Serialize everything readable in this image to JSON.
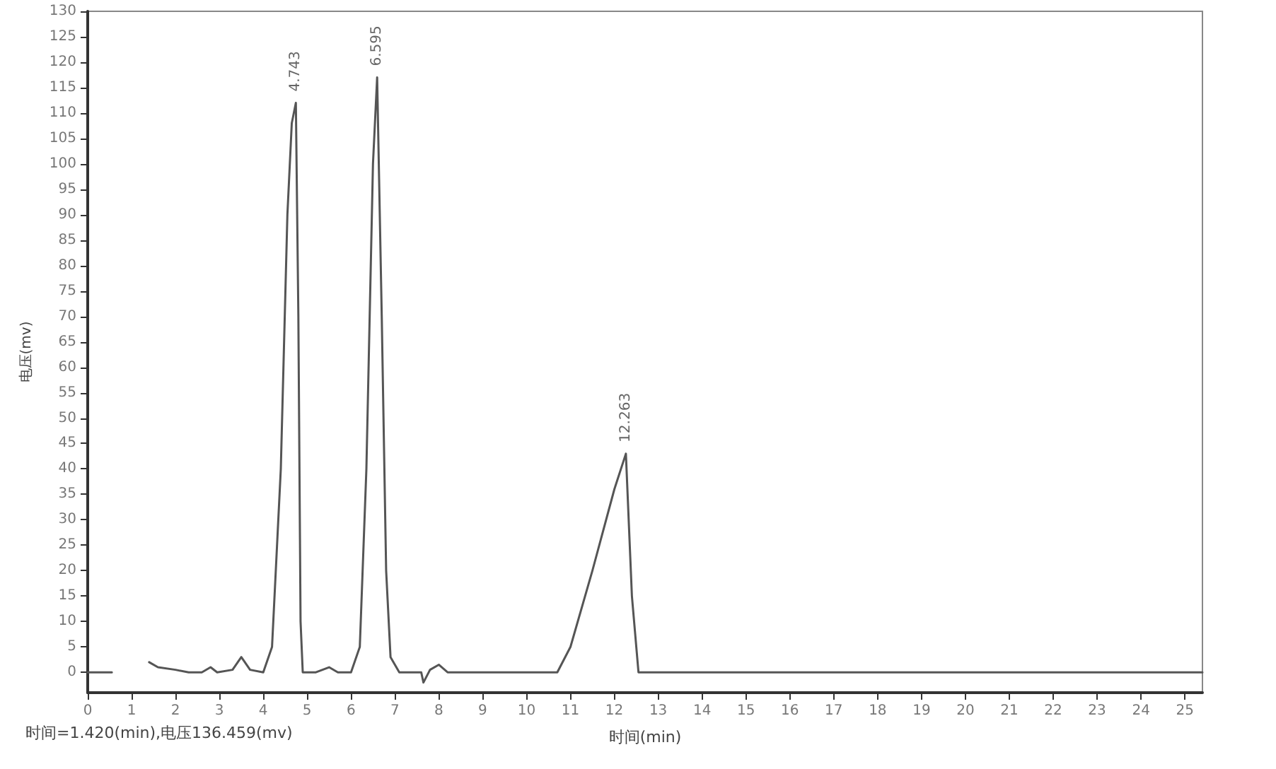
{
  "chart_data": {
    "type": "line",
    "xlabel": "时间(min)",
    "ylabel": "电压(mv)",
    "annotations": [
      {
        "text": "4.743",
        "x": 4.743,
        "y": 112
      },
      {
        "text": "6.595",
        "x": 6.595,
        "y": 117
      },
      {
        "text": "12.263",
        "x": 12.263,
        "y": 43
      },
      "时间=1.420(min),电压136.459(mv)"
    ],
    "x": [
      0,
      0.55,
      0.56,
      0.72,
      0.73,
      1.25,
      1.4,
      1.6,
      2.0,
      2.3,
      2.6,
      2.8,
      2.95,
      3.3,
      3.5,
      3.7,
      4.0,
      4.2,
      4.4,
      4.55,
      4.65,
      4.743,
      4.8,
      4.85,
      4.9,
      5.2,
      5.5,
      5.7,
      6.0,
      6.2,
      6.35,
      6.5,
      6.595,
      6.7,
      6.8,
      6.9,
      7.1,
      7.6,
      7.65,
      7.8,
      8.0,
      8.2,
      10.7,
      11.0,
      11.5,
      12.0,
      12.263,
      12.4,
      12.55,
      25.4
    ],
    "series": [
      {
        "color": "#555555",
        "values": [
          0,
          0,
          null,
          null,
          null,
          null,
          2,
          1,
          0.5,
          0,
          0,
          1,
          0,
          0.5,
          3,
          0.5,
          0,
          5,
          40,
          90,
          108,
          112,
          70,
          10,
          0,
          0,
          1,
          0,
          0,
          5,
          40,
          100,
          117,
          70,
          20,
          3,
          0,
          0,
          -2,
          0.5,
          1.5,
          0,
          0,
          5,
          20,
          36,
          43,
          15,
          0,
          0
        ]
      }
    ],
    "xlim": [
      0,
      25.4
    ],
    "ylim": [
      -4,
      130
    ],
    "xticks": [
      0,
      1,
      2,
      3,
      4,
      5,
      6,
      7,
      8,
      9,
      10,
      11,
      12,
      13,
      14,
      15,
      16,
      17,
      18,
      19,
      20,
      21,
      22,
      23,
      24,
      25
    ],
    "yticks": [
      0,
      5,
      10,
      15,
      20,
      25,
      30,
      35,
      40,
      45,
      50,
      55,
      60,
      65,
      70,
      75,
      80,
      85,
      90,
      95,
      100,
      105,
      110,
      115,
      120,
      125,
      130
    ],
    "marker": "none",
    "line_style": "solid"
  }
}
